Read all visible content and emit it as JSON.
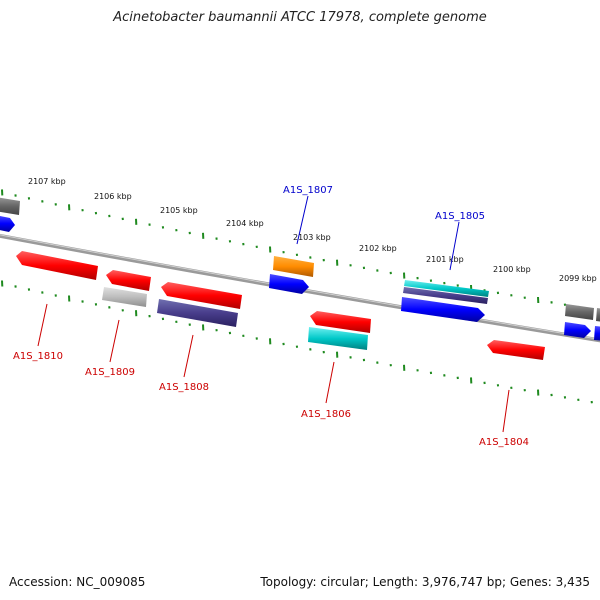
{
  "title": "Acinetobacter baumannii ATCC 17978, complete genome",
  "accession": "Accession: NC_009085",
  "summary": "Topology: circular; Length: 3,976,747 bp; Genes: 3,435",
  "colors": {
    "backbone": "#8a8a8a",
    "ticks": "#1f8a1f",
    "label_forward": "#0000cc",
    "label_reverse": "#cc0000"
  },
  "ruler": {
    "unit": "kbp",
    "labels": [
      "2107 kbp",
      "2106 kbp",
      "2105 kbp",
      "2104 kbp",
      "2103 kbp",
      "2102 kbp",
      "2101 kbp",
      "2100 kbp",
      "2099 kbp"
    ]
  },
  "genes": [
    {
      "label": "A1S_1807",
      "strand": "forward"
    },
    {
      "label": "A1S_1805",
      "strand": "forward"
    },
    {
      "label": "A1S_1810",
      "strand": "reverse"
    },
    {
      "label": "A1S_1809",
      "strand": "reverse"
    },
    {
      "label": "A1S_1808",
      "strand": "reverse"
    },
    {
      "label": "A1S_1806",
      "strand": "reverse"
    },
    {
      "label": "A1S_1804",
      "strand": "reverse"
    }
  ]
}
